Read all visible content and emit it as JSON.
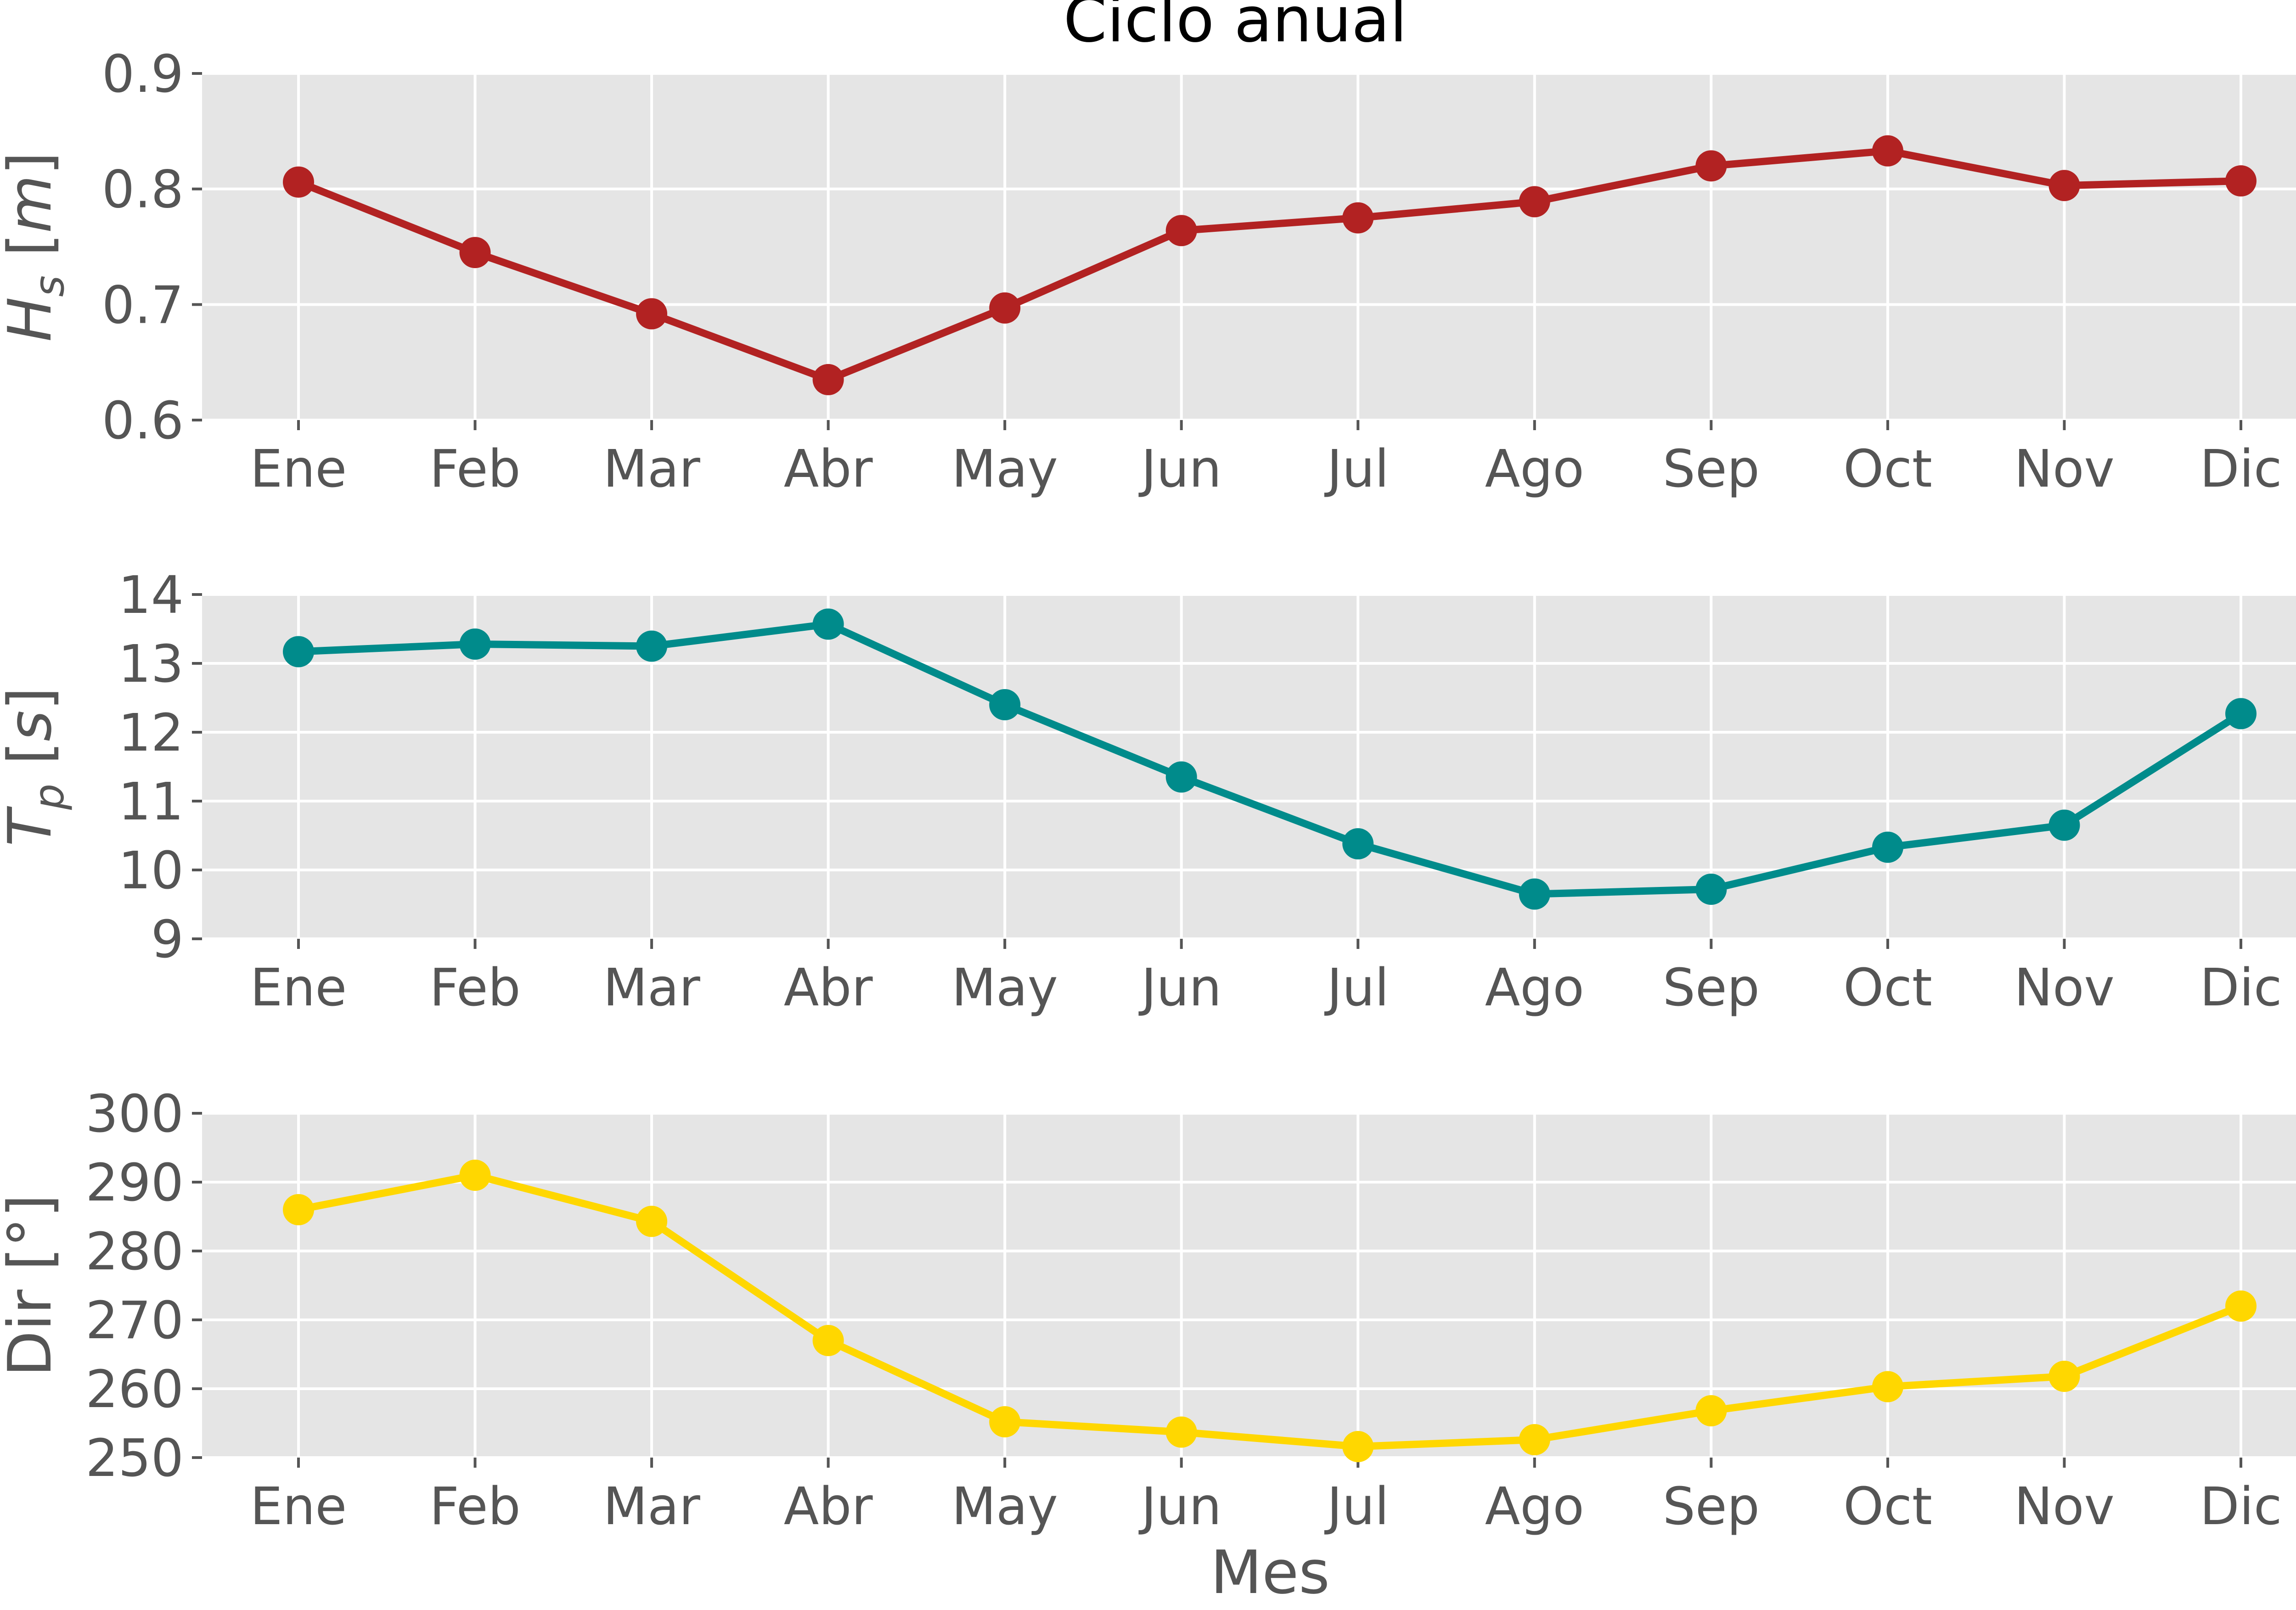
{
  "figure": {
    "title": "Ciclo anual",
    "xlabel": "Mes",
    "background": "#ffffff",
    "panel_background": "#e5e5e5",
    "grid_color": "#ffffff",
    "tick_color": "#555555"
  },
  "chart_data": [
    {
      "type": "line",
      "categories": [
        "Ene",
        "Feb",
        "Mar",
        "Abr",
        "May",
        "Jun",
        "Jul",
        "Ago",
        "Sep",
        "Oct",
        "Nov",
        "Dic"
      ],
      "series": [
        {
          "values": [
            0.806,
            0.745,
            0.692,
            0.635,
            0.697,
            0.764,
            0.775,
            0.789,
            0.82,
            0.833,
            0.803,
            0.807
          ],
          "color": "#b22222"
        }
      ],
      "ylabel_main": "H",
      "ylabel_sub": "s",
      "ylabel_unit": "m",
      "ylim": [
        0.6,
        0.9
      ],
      "yticks": [
        "0.6",
        "0.7",
        "0.8",
        "0.9"
      ],
      "grid": true
    },
    {
      "type": "line",
      "categories": [
        "Ene",
        "Feb",
        "Mar",
        "Abr",
        "May",
        "Jun",
        "Jul",
        "Ago",
        "Sep",
        "Oct",
        "Nov",
        "Dic"
      ],
      "series": [
        {
          "values": [
            13.17,
            13.28,
            13.25,
            13.57,
            12.4,
            11.35,
            10.38,
            9.65,
            9.72,
            10.33,
            10.65,
            12.27
          ],
          "color": "#008b8b"
        }
      ],
      "ylabel_main": "T",
      "ylabel_sub": "p",
      "ylabel_unit": "s",
      "ylim": [
        9,
        14
      ],
      "yticks": [
        "9",
        "10",
        "11",
        "12",
        "13",
        "14"
      ],
      "grid": true
    },
    {
      "type": "line",
      "categories": [
        "Ene",
        "Feb",
        "Mar",
        "Abr",
        "May",
        "Jun",
        "Jul",
        "Ago",
        "Sep",
        "Oct",
        "Nov",
        "Dic"
      ],
      "series": [
        {
          "values": [
            286.0,
            291.0,
            284.3,
            267.0,
            255.2,
            253.7,
            251.6,
            252.6,
            256.8,
            260.3,
            261.8,
            272.0
          ],
          "color": "#ffd700"
        }
      ],
      "ylabel": "Dir [°]",
      "ylim": [
        250,
        300
      ],
      "yticks": [
        "250",
        "260",
        "270",
        "280",
        "290",
        "300"
      ],
      "grid": true
    }
  ]
}
